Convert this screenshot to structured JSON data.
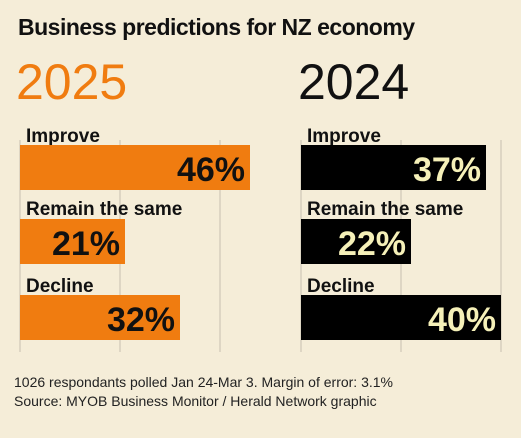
{
  "title": "Business predictions for NZ economy",
  "colors": {
    "background": "#f5edd8",
    "bar_2025": "#f07c10",
    "bar_2024": "#000000",
    "label_2025": "#111111",
    "label_2024": "#f5f0b8",
    "gridline": "#c8c0b0"
  },
  "chart_data": [
    {
      "type": "bar",
      "orientation": "horizontal",
      "title": "2025",
      "categories": [
        "Improve",
        "Remain the same",
        "Decline"
      ],
      "values": [
        46,
        21,
        32
      ],
      "value_labels": [
        "46%",
        "21%",
        "32%"
      ],
      "xlim": [
        0,
        50
      ],
      "grid": true
    },
    {
      "type": "bar",
      "orientation": "horizontal",
      "title": "2024",
      "categories": [
        "Improve",
        "Remain the same",
        "Decline"
      ],
      "values": [
        37,
        22,
        40
      ],
      "value_labels": [
        "37%",
        "22%",
        "40%"
      ],
      "xlim": [
        0,
        50
      ],
      "grid": true
    }
  ],
  "footer": {
    "line1": "1026 respondants polled Jan 24-Mar 3. Margin of error: 3.1%",
    "line2": "Source: MYOB Business Monitor / Herald Network graphic"
  }
}
